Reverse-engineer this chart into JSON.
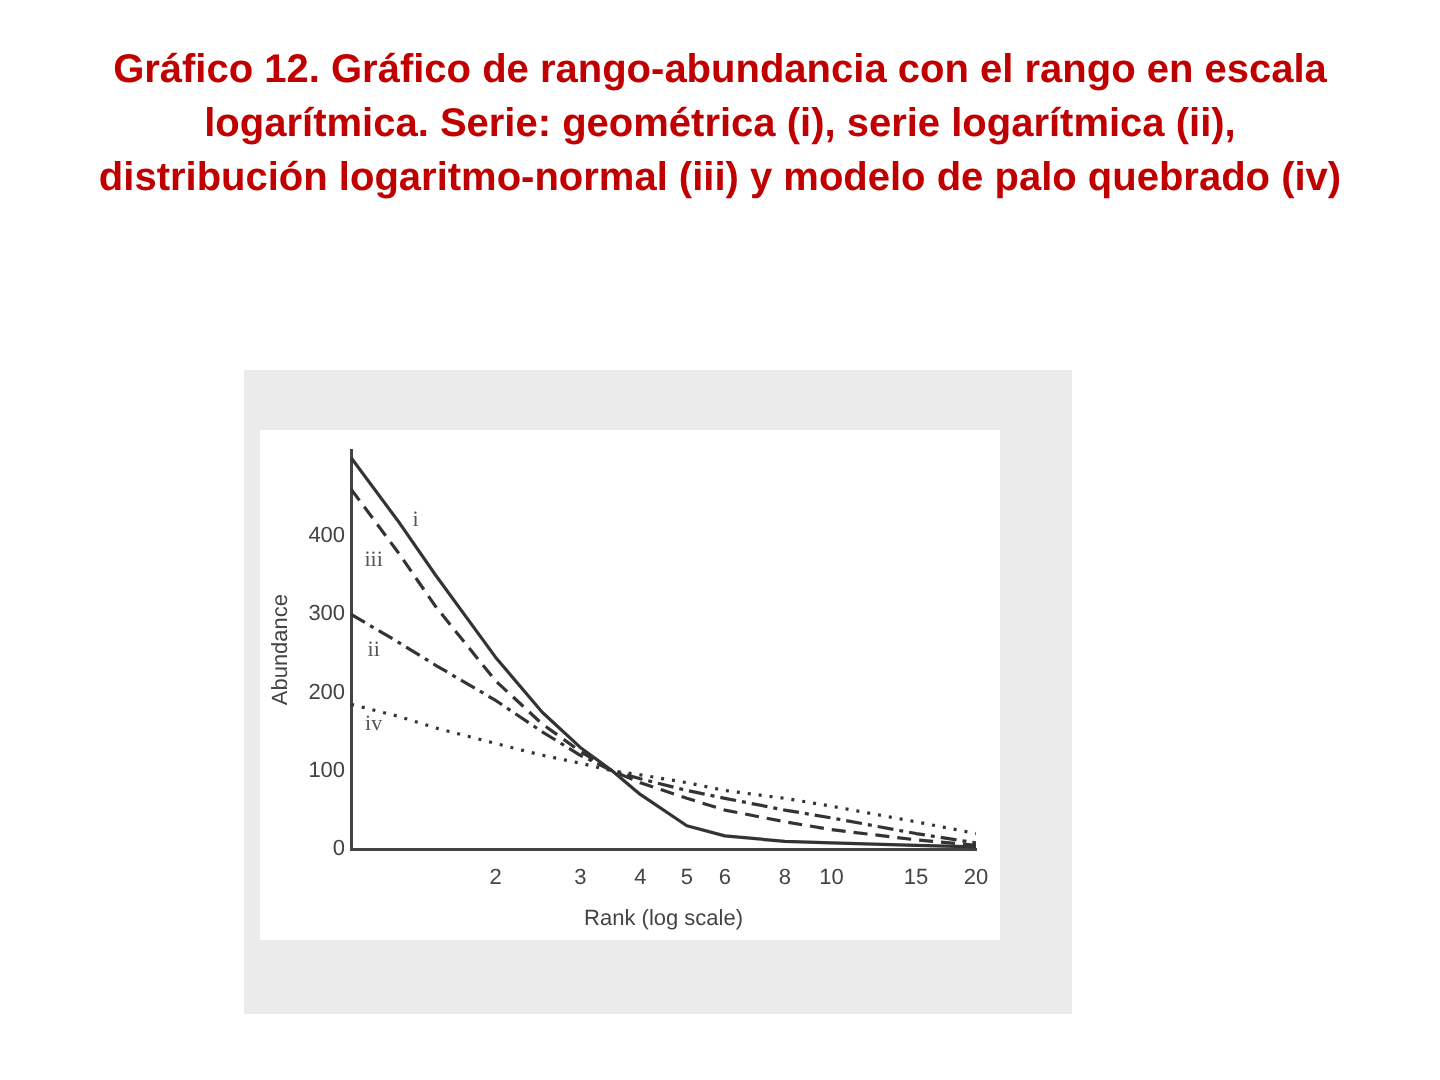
{
  "chart_data": {
    "type": "line",
    "title": "Gráfico 12. Gráfico de rango-abundancia con el rango en escala logarítmica. Serie: geométrica (i), serie logarítmica (ii), distribución logaritmo-normal (iii) y modelo de palo quebrado (iv)",
    "xlabel": "Rank (log scale)",
    "ylabel": "Abundance",
    "x": [
      1,
      1.25,
      1.5,
      2,
      2.5,
      3,
      3.5,
      4,
      5,
      6,
      8,
      10,
      15,
      20
    ],
    "series": [
      {
        "name": "i",
        "color": "#333333",
        "line_style": "solid",
        "values": [
          500,
          420,
          350,
          245,
          175,
          130,
          100,
          70,
          30,
          17,
          10,
          8,
          5,
          3
        ]
      },
      {
        "name": "ii",
        "color": "#333333",
        "line_style": "dashdot",
        "values": [
          300,
          265,
          235,
          190,
          150,
          120,
          100,
          90,
          75,
          65,
          50,
          40,
          20,
          8
        ]
      },
      {
        "name": "iii",
        "color": "#333333",
        "line_style": "dashed",
        "values": [
          460,
          380,
          310,
          215,
          160,
          125,
          100,
          85,
          65,
          50,
          35,
          25,
          12,
          5
        ]
      },
      {
        "name": "iv",
        "color": "#333333",
        "line_style": "dotted",
        "values": [
          185,
          170,
          155,
          135,
          120,
          110,
          100,
          95,
          85,
          75,
          65,
          55,
          35,
          20
        ]
      }
    ],
    "log": "x",
    "xlim": [
      1,
      20
    ],
    "xticks": [
      2,
      3,
      4,
      5,
      6,
      8,
      10,
      15,
      20
    ],
    "ylim": [
      0,
      510
    ],
    "yticks": [
      0,
      100,
      200,
      300,
      400
    ],
    "grid": false,
    "legend": false,
    "marker": "none"
  }
}
